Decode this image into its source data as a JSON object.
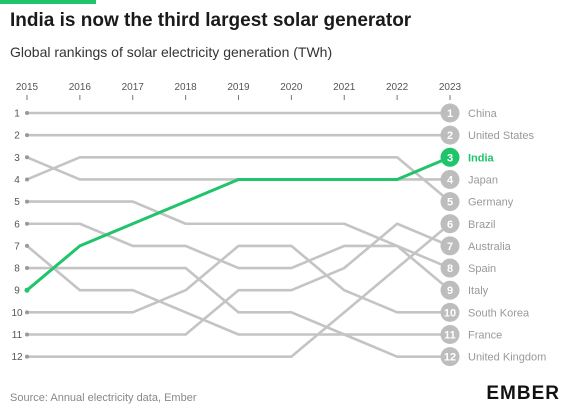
{
  "header": {
    "title": "India is now the third largest solar generator",
    "subtitle": "Global rankings of solar electricity generation (TWh)"
  },
  "footer": {
    "source": "Source: Annual electricity data, Ember",
    "logo": "EMBER"
  },
  "colors": {
    "highlight": "#1fc46b",
    "line": "#c4c4c4",
    "badge": "#bdbdbd"
  },
  "chart_data": {
    "type": "line",
    "title": "India is now the third largest solar generator",
    "subtitle": "Global rankings of solar electricity generation (TWh)",
    "x": [
      2015,
      2016,
      2017,
      2018,
      2019,
      2020,
      2021,
      2022,
      2023
    ],
    "y_axis": {
      "reversed": true,
      "ylim": [
        1,
        12
      ],
      "ticks": [
        1,
        2,
        3,
        4,
        5,
        6,
        7,
        8,
        9,
        10,
        11,
        12
      ]
    },
    "highlight": "India",
    "series": [
      {
        "name": "China",
        "values": [
          1,
          1,
          1,
          1,
          1,
          1,
          1,
          1,
          1
        ]
      },
      {
        "name": "United States",
        "values": [
          2,
          2,
          2,
          2,
          2,
          2,
          2,
          2,
          2
        ]
      },
      {
        "name": "India",
        "values": [
          9,
          7,
          6,
          5,
          4,
          4,
          4,
          4,
          3
        ]
      },
      {
        "name": "Japan",
        "values": [
          3,
          4,
          4,
          4,
          4,
          4,
          4,
          4,
          4
        ]
      },
      {
        "name": "Germany",
        "values": [
          4,
          3,
          3,
          3,
          3,
          3,
          3,
          3,
          5
        ]
      },
      {
        "name": "Brazil",
        "values": [
          12,
          12,
          12,
          12,
          12,
          12,
          10,
          8,
          6
        ]
      },
      {
        "name": "Australia",
        "values": [
          11,
          11,
          11,
          11,
          9,
          9,
          8,
          6,
          7
        ]
      },
      {
        "name": "Spain",
        "values": [
          6,
          6,
          7,
          7,
          8,
          8,
          7,
          7,
          8
        ]
      },
      {
        "name": "Italy",
        "values": [
          5,
          5,
          5,
          6,
          6,
          6,
          6,
          7,
          9
        ]
      },
      {
        "name": "South Korea",
        "values": [
          10,
          10,
          10,
          9,
          7,
          7,
          9,
          10,
          10
        ]
      },
      {
        "name": "France",
        "values": [
          8,
          8,
          8,
          8,
          10,
          10,
          11,
          11,
          11
        ]
      },
      {
        "name": "United Kingdom",
        "values": [
          7,
          9,
          9,
          10,
          11,
          11,
          11,
          12,
          12
        ]
      }
    ]
  }
}
